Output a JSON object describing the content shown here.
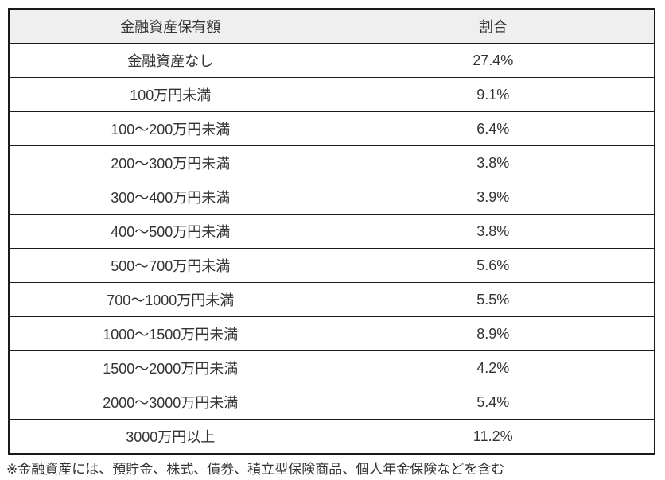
{
  "table": {
    "headers": [
      "金融資産保有額",
      "割合"
    ],
    "rows": [
      [
        "金融資産なし",
        "27.4%"
      ],
      [
        "100万円未満",
        "9.1%"
      ],
      [
        "100～200万円未満",
        "6.4%"
      ],
      [
        "200～300万円未満",
        "3.8%"
      ],
      [
        "300～400万円未満",
        "3.9%"
      ],
      [
        "400～500万円未満",
        "3.8%"
      ],
      [
        "500～700万円未満",
        "5.6%"
      ],
      [
        "700～1000万円未満",
        "5.5%"
      ],
      [
        "1000～1500万円未満",
        "8.9%"
      ],
      [
        "1500～2000万円未満",
        "4.2%"
      ],
      [
        "2000～3000万円未満",
        "5.4%"
      ],
      [
        "3000万円以上",
        "11.2%"
      ]
    ],
    "footnote": "※金融資産には、預貯金、株式、債券、積立型保険商品、個人年金保険などを含む"
  },
  "chart_data": {
    "type": "table",
    "columns": [
      "金融資産保有額",
      "割合"
    ],
    "categories": [
      "金融資産なし",
      "100万円未満",
      "100～200万円未満",
      "200～300万円未満",
      "300～400万円未満",
      "400～500万円未満",
      "500～700万円未満",
      "700～1000万円未満",
      "1000～1500万円未満",
      "1500～2000万円未満",
      "2000～3000万円未満",
      "3000万円以上"
    ],
    "values": [
      27.4,
      9.1,
      6.4,
      3.8,
      3.9,
      3.8,
      5.6,
      5.5,
      8.9,
      4.2,
      5.4,
      11.2
    ],
    "unit": "%",
    "footnote": "※金融資産には、預貯金、株式、債券、積立型保険商品、個人年金保険などを含む"
  },
  "colors": {
    "header_bg": "#efefef",
    "border": "#1a1a1a",
    "text": "#333333"
  }
}
